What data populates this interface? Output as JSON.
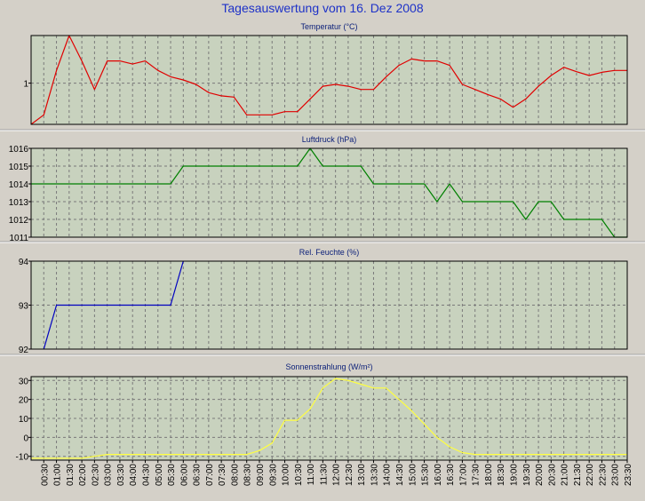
{
  "page": {
    "title": "Tagesauswertung vom 16. Dez 2008"
  },
  "x_ticks": [
    "00:30",
    "01:00",
    "01:30",
    "02:00",
    "02:30",
    "03:00",
    "03:30",
    "04:00",
    "04:30",
    "05:00",
    "05:30",
    "06:00",
    "06:30",
    "07:00",
    "07:30",
    "08:00",
    "08:30",
    "09:00",
    "09:30",
    "10:00",
    "10:30",
    "11:00",
    "11:30",
    "12:00",
    "12:30",
    "13:00",
    "13:30",
    "14:00",
    "14:30",
    "15:00",
    "15:30",
    "16:00",
    "16:30",
    "17:00",
    "17:30",
    "18:00",
    "18:30",
    "19:00",
    "19:30",
    "20:00",
    "20:30",
    "21:00",
    "21:30",
    "22:00",
    "22:30",
    "23:00",
    "23:30"
  ],
  "colors": {
    "background": "#D4D0C8",
    "plot_bg": "#C8D2BE",
    "grid": "#7A7A7A"
  },
  "chart_data": [
    {
      "type": "line",
      "title": "Temperatur (°C)",
      "color": "#E00000",
      "ylim": [
        0.35,
        1.75
      ],
      "yticks": [
        1
      ],
      "grid": true,
      "x": [
        "00:00",
        "00:30",
        "01:00",
        "01:30",
        "02:00",
        "02:30",
        "03:00",
        "03:30",
        "04:00",
        "04:30",
        "05:00",
        "05:30",
        "06:00",
        "06:30",
        "07:00",
        "07:30",
        "08:00",
        "08:30",
        "09:00",
        "09:30",
        "10:00",
        "10:30",
        "11:00",
        "11:30",
        "12:00",
        "12:30",
        "13:00",
        "13:30",
        "14:00",
        "14:30",
        "15:00",
        "15:30",
        "16:00",
        "16:30",
        "17:00",
        "17:30",
        "18:00",
        "18:30",
        "19:00",
        "19:30",
        "20:00",
        "20:30",
        "21:00",
        "21:30",
        "22:00",
        "22:30",
        "23:00",
        "23:30"
      ],
      "values": [
        0.35,
        0.5,
        1.2,
        1.75,
        1.35,
        0.9,
        1.35,
        1.35,
        1.3,
        1.35,
        1.2,
        1.1,
        1.05,
        0.98,
        0.85,
        0.8,
        0.78,
        0.5,
        0.5,
        0.5,
        0.55,
        0.55,
        0.75,
        0.95,
        0.98,
        0.95,
        0.9,
        0.9,
        1.1,
        1.28,
        1.38,
        1.35,
        1.35,
        1.28,
        0.98,
        0.9,
        0.82,
        0.75,
        0.62,
        0.75,
        0.95,
        1.12,
        1.25,
        1.18,
        1.12,
        1.17,
        1.2,
        1.2
      ]
    },
    {
      "type": "line",
      "title": "Luftdruck (hPa)",
      "color": "#008000",
      "ylim": [
        1011,
        1016
      ],
      "yticks": [
        1011,
        1012,
        1013,
        1014,
        1015,
        1016
      ],
      "grid": true,
      "x": [
        "00:00",
        "00:30",
        "01:00",
        "01:30",
        "02:00",
        "02:30",
        "03:00",
        "03:30",
        "04:00",
        "04:30",
        "05:00",
        "05:30",
        "06:00",
        "06:30",
        "07:00",
        "07:30",
        "08:00",
        "08:30",
        "09:00",
        "09:30",
        "10:00",
        "10:30",
        "11:00",
        "11:30",
        "12:00",
        "12:30",
        "13:00",
        "13:30",
        "14:00",
        "14:30",
        "15:00",
        "15:30",
        "16:00",
        "16:30",
        "17:00",
        "17:30",
        "18:00",
        "18:30",
        "19:00",
        "19:30",
        "20:00",
        "20:30",
        "21:00",
        "21:30",
        "22:00",
        "22:30",
        "23:00",
        "23:30"
      ],
      "values": [
        1014,
        1014,
        1014,
        1014,
        1014,
        1014,
        1014,
        1014,
        1014,
        1014,
        1014,
        1014,
        1015,
        1015,
        1015,
        1015,
        1015,
        1015,
        1015,
        1015,
        1015,
        1015,
        1016,
        1015,
        1015,
        1015,
        1015,
        1014,
        1014,
        1014,
        1014,
        1014,
        1013,
        1014,
        1013,
        1013,
        1013,
        1013,
        1013,
        1012,
        1013,
        1013,
        1012,
        1012,
        1012,
        1012,
        1011,
        1011
      ]
    },
    {
      "type": "line",
      "title": "Rel. Feuchte (%)",
      "color": "#0000C0",
      "ylim": [
        92,
        94
      ],
      "yticks": [
        92,
        93,
        94
      ],
      "grid": true,
      "x": [
        "00:30",
        "01:00",
        "01:30",
        "02:00",
        "02:30",
        "03:00",
        "03:30",
        "04:00",
        "04:30",
        "05:00",
        "05:30",
        "06:00"
      ],
      "values": [
        92,
        93,
        93,
        93,
        93,
        93,
        93,
        93,
        93,
        93,
        93,
        94
      ]
    },
    {
      "type": "line",
      "title": "Sonnenstrahlung (W/m²)",
      "color": "#FFFF40",
      "ylim": [
        -12,
        32
      ],
      "yticks": [
        -10,
        0,
        10,
        20,
        30
      ],
      "grid": true,
      "x": [
        "00:00",
        "00:30",
        "01:00",
        "01:30",
        "02:00",
        "02:30",
        "03:00",
        "03:30",
        "04:00",
        "04:30",
        "05:00",
        "05:30",
        "06:00",
        "06:30",
        "07:00",
        "07:30",
        "08:00",
        "08:30",
        "09:00",
        "09:30",
        "10:00",
        "10:30",
        "11:00",
        "11:30",
        "12:00",
        "12:30",
        "13:00",
        "13:30",
        "14:00",
        "14:30",
        "15:00",
        "15:30",
        "16:00",
        "16:30",
        "17:00",
        "17:30",
        "18:00",
        "18:30",
        "19:00",
        "19:30",
        "20:00",
        "20:30",
        "21:00",
        "21:30",
        "22:00",
        "22:30",
        "23:00",
        "23:30"
      ],
      "values": [
        -11,
        -11,
        -11,
        -11,
        -11,
        -10,
        -9,
        -9,
        -9,
        -9,
        -9,
        -9,
        -9,
        -9,
        -9,
        -9,
        -9,
        -9,
        -7,
        -3,
        9,
        9,
        15,
        26,
        31,
        30,
        28,
        26,
        26,
        20,
        14,
        7,
        0,
        -5,
        -8,
        -9,
        -9,
        -9,
        -9,
        -9,
        -9,
        -9,
        -9,
        -9,
        -9,
        -9,
        -9,
        -9
      ]
    }
  ]
}
